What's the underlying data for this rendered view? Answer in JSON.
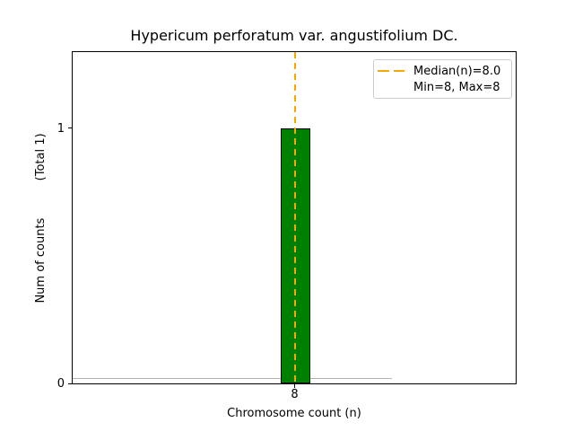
{
  "chart_data": {
    "type": "bar",
    "title": "Hypericum perforatum var. angustifolium DC.",
    "xlabel": "Chromosome count (n)",
    "ylabel": "Num of counts          (Total 1)",
    "categories": [
      8
    ],
    "values": [
      1
    ],
    "total_counts": 1,
    "median_n": 8.0,
    "min_n": 8,
    "max_n": 8,
    "x_ticks": [
      "8"
    ],
    "y_ticks": [
      "0",
      "1"
    ],
    "xlim": [
      2,
      14
    ],
    "ylim": [
      0,
      1.3
    ],
    "grid": false,
    "legend_position": "upper right",
    "colors": {
      "bar_fill": "#008000",
      "bar_edge": "#000000",
      "median_line": "#FFA500",
      "legend_border": "#cccccc",
      "zero_baseline": "#b3b3b3",
      "text": "#000000"
    },
    "legend": {
      "entries": [
        {
          "label": "Median(n)=8.0",
          "line_color": "#FFA500",
          "line_style": "dashed"
        },
        {
          "label": "Min=8, Max=8",
          "line_color": null,
          "line_style": "none"
        }
      ]
    }
  }
}
